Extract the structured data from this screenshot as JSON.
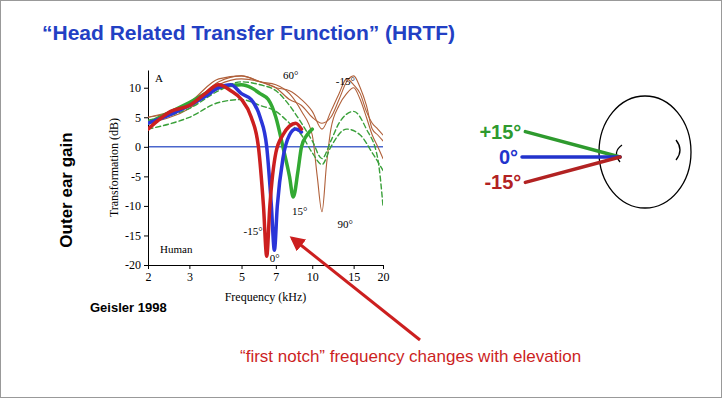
{
  "title": "“Head Related Transfer Function” (HRTF)",
  "side_label": "Outer ear gain",
  "source": "Geisler 1998",
  "callout": {
    "text": "“first notch” frequency changes with elevation",
    "color": "#cc1f1f"
  },
  "diagram": {
    "angles": [
      {
        "label": "+15°",
        "angle": 15,
        "color": "#2e9a2e"
      },
      {
        "label": "0°",
        "angle": 0,
        "color": "#2233cc"
      },
      {
        "label": "-15°",
        "angle": -15,
        "color": "#b22222"
      }
    ]
  },
  "chart_data": {
    "type": "line",
    "x_label": "Frequency (kHz)",
    "y_label": "Transformation (dB)",
    "log": "x",
    "xlim": [
      2,
      20
    ],
    "xticks": [
      2,
      3,
      5,
      7,
      10,
      15,
      20
    ],
    "ylim": [
      -20,
      13
    ],
    "yticks": [
      -20,
      -15,
      -10,
      -5,
      0,
      5,
      10
    ],
    "baseline": 0,
    "annotations": [
      {
        "text": "A",
        "x": 2.14,
        "y": 11.6
      },
      {
        "text": "Human",
        "x": 2.25,
        "y": -17.4
      },
      {
        "text": "60°",
        "x": 7.5,
        "y": 12.1
      },
      {
        "text": "-15°",
        "x": 12.6,
        "y": 11.1
      },
      {
        "text": "90°",
        "x": 12.8,
        "y": -13.1
      },
      {
        "text": "-15°",
        "x": 5.1,
        "y": -14.3
      },
      {
        "text": "15°",
        "x": 8.2,
        "y": -10.9
      },
      {
        "text": "0°",
        "x": 6.6,
        "y": -18.8
      }
    ],
    "series": [
      {
        "color": "#b0603a",
        "line_style": "solid",
        "x": [
          2,
          3,
          4,
          5,
          6,
          7,
          8,
          9,
          10,
          10.5,
          11,
          11.5,
          12,
          13,
          14,
          15,
          16,
          17,
          18,
          19,
          20
        ],
        "values": [
          5,
          7,
          11,
          12,
          11,
          10.5,
          9,
          6,
          2,
          -5,
          -11,
          -3,
          3,
          7,
          9,
          10,
          8,
          5,
          2,
          0,
          -2
        ]
      },
      {
        "color": "#b0603a",
        "line_style": "solid",
        "x": [
          2,
          3,
          4,
          5,
          6,
          7,
          8,
          9,
          10,
          11,
          12,
          13,
          14,
          15,
          16,
          17,
          18,
          19,
          20
        ],
        "values": [
          5,
          7.5,
          11.5,
          12,
          11,
          10,
          8,
          7,
          5,
          4,
          5,
          8,
          11,
          12,
          10,
          7,
          3,
          2,
          1
        ]
      },
      {
        "color": "#b0603a",
        "line_style": "solid",
        "x": [
          2,
          3,
          4,
          5,
          6,
          7,
          8,
          9,
          10,
          11,
          12,
          13,
          14,
          15,
          16,
          17,
          18,
          19,
          20
        ],
        "values": [
          4,
          6.5,
          10.5,
          11.5,
          11,
          10,
          9.5,
          8,
          6,
          3,
          6,
          9,
          11.5,
          10.5,
          9,
          6,
          4,
          3,
          2
        ]
      },
      {
        "color": "#3aa03a",
        "line_style": "dashed",
        "x": [
          2,
          3,
          4,
          5,
          6,
          7,
          8,
          9,
          10,
          11,
          12,
          14,
          16,
          18,
          20
        ],
        "values": [
          3,
          5,
          7.5,
          8,
          7,
          6,
          4,
          2,
          -1,
          -3,
          0,
          3,
          2,
          -1,
          -4
        ]
      },
      {
        "color": "#3aa03a",
        "line_style": "dashed",
        "x": [
          2,
          3,
          4,
          5,
          6,
          7,
          8,
          9,
          10,
          11,
          12,
          13,
          15,
          17,
          19,
          20
        ],
        "values": [
          4.5,
          6.5,
          9.5,
          11,
          10.5,
          9.5,
          7,
          4,
          1,
          -2,
          1,
          4,
          6,
          3,
          -2,
          -10
        ]
      },
      {
        "color": "#33a933",
        "line_style": "bold",
        "x": [
          2,
          3,
          4,
          5,
          5.5,
          6,
          6.5,
          7,
          7.5,
          8,
          8.3,
          8.7,
          9,
          9.5,
          10
        ],
        "values": [
          4,
          7.5,
          10,
          10.5,
          10,
          9,
          8,
          5,
          0,
          -5,
          -8.5,
          -4,
          0,
          2,
          3
        ]
      },
      {
        "color": "#2b35d8",
        "line_style": "bold",
        "x": [
          2,
          2.5,
          3,
          3.5,
          4,
          4.5,
          5,
          5.5,
          6,
          6.4,
          6.7,
          6.9,
          7.1,
          7.5,
          8,
          8.5,
          9
        ],
        "values": [
          4,
          5.5,
          7,
          8.5,
          10,
          10.5,
          9,
          8,
          5,
          0,
          -10,
          -17.5,
          -10,
          -2,
          2,
          3,
          2.5
        ]
      },
      {
        "color": "#cc1f1f",
        "line_style": "bold",
        "x": [
          2,
          2.5,
          3,
          3.5,
          4,
          4.5,
          5,
          5.5,
          5.9,
          6.2,
          6.4,
          6.6,
          7,
          7.5,
          8,
          8.5,
          9
        ],
        "values": [
          3,
          6,
          7,
          9,
          10.5,
          9.5,
          8,
          5,
          0,
          -10,
          -18.5,
          -10,
          -1,
          2,
          3.5,
          4,
          3
        ]
      }
    ]
  }
}
